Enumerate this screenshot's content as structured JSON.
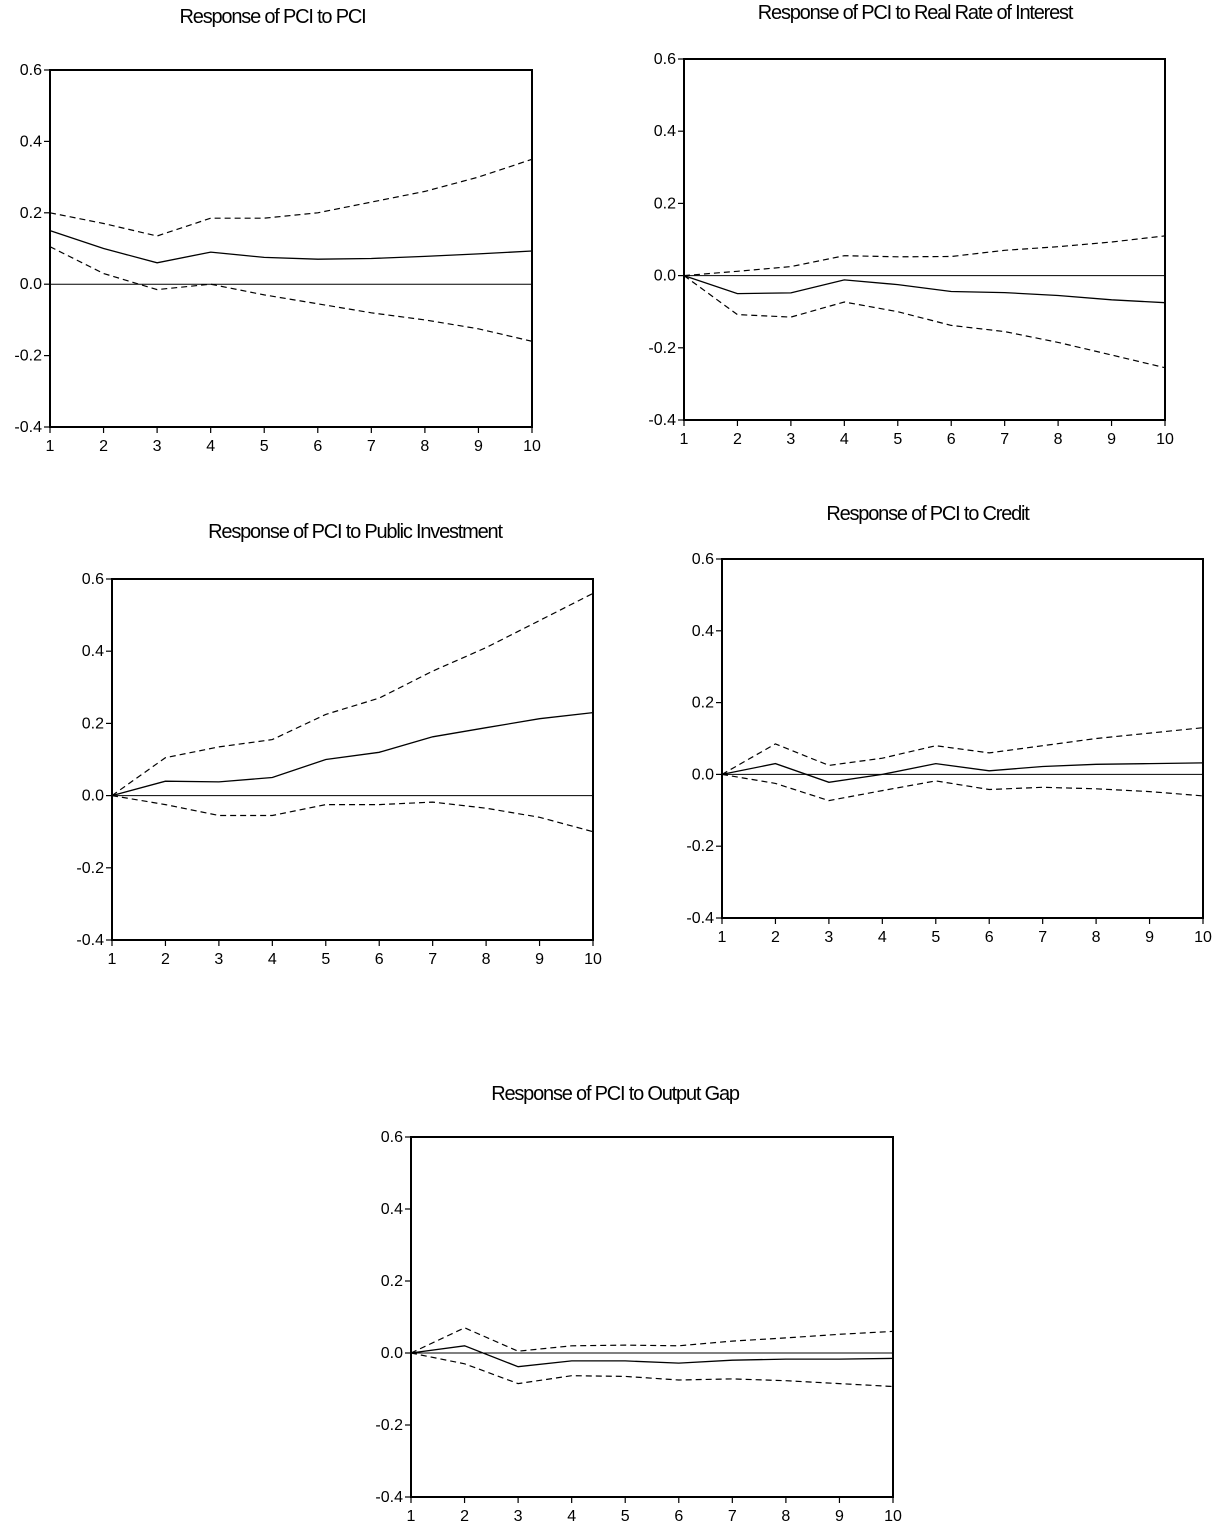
{
  "chart_data": [
    {
      "type": "line",
      "title": "Response of PCI to PCI",
      "xlabel": "",
      "ylabel": "",
      "x": [
        1,
        2,
        3,
        4,
        5,
        6,
        7,
        8,
        9,
        10
      ],
      "ylim": [
        -0.4,
        0.6
      ],
      "yticks": [
        "-0.4",
        "-0.2",
        "0.0",
        "0.2",
        "0.4",
        "0.6"
      ],
      "grid": false,
      "series": [
        {
          "role": "response",
          "style": "solid",
          "values": [
            0.15,
            0.1,
            0.06,
            0.09,
            0.075,
            0.07,
            0.072,
            0.078,
            0.085,
            0.093
          ]
        },
        {
          "role": "upper",
          "style": "dashed",
          "values": [
            0.2,
            0.17,
            0.135,
            0.185,
            0.185,
            0.2,
            0.23,
            0.26,
            0.3,
            0.35
          ]
        },
        {
          "role": "lower",
          "style": "dashed",
          "values": [
            0.105,
            0.03,
            -0.015,
            0.0,
            -0.03,
            -0.055,
            -0.08,
            -0.1,
            -0.125,
            -0.16
          ]
        }
      ]
    },
    {
      "type": "line",
      "title": "Response of PCI to Real Rate of Interest",
      "xlabel": "",
      "ylabel": "",
      "x": [
        1,
        2,
        3,
        4,
        5,
        6,
        7,
        8,
        9,
        10
      ],
      "ylim": [
        -0.4,
        0.6
      ],
      "yticks": [
        "-0.4",
        "-0.2",
        "0.0",
        "0.2",
        "0.4",
        "0.6"
      ],
      "grid": false,
      "series": [
        {
          "role": "response",
          "style": "solid",
          "values": [
            0.0,
            -0.05,
            -0.048,
            -0.012,
            -0.025,
            -0.044,
            -0.047,
            -0.055,
            -0.067,
            -0.075
          ]
        },
        {
          "role": "upper",
          "style": "dashed",
          "values": [
            0.0,
            0.012,
            0.025,
            0.055,
            0.052,
            0.053,
            0.07,
            0.08,
            0.093,
            0.11
          ]
        },
        {
          "role": "lower",
          "style": "dashed",
          "values": [
            0.0,
            -0.108,
            -0.115,
            -0.073,
            -0.1,
            -0.138,
            -0.155,
            -0.185,
            -0.22,
            -0.255
          ]
        }
      ]
    },
    {
      "type": "line",
      "title": "Response of PCI to Public Investment",
      "xlabel": "",
      "ylabel": "",
      "x": [
        1,
        2,
        3,
        4,
        5,
        6,
        7,
        8,
        9,
        10
      ],
      "ylim": [
        -0.4,
        0.6
      ],
      "yticks": [
        "-0.4",
        "-0.2",
        "0.0",
        "0.2",
        "0.4",
        "0.6"
      ],
      "grid": false,
      "series": [
        {
          "role": "response",
          "style": "solid",
          "values": [
            0.0,
            0.04,
            0.038,
            0.05,
            0.1,
            0.12,
            0.163,
            0.188,
            0.213,
            0.23
          ]
        },
        {
          "role": "upper",
          "style": "dashed",
          "values": [
            0.0,
            0.105,
            0.135,
            0.155,
            0.225,
            0.27,
            0.345,
            0.41,
            0.485,
            0.56
          ]
        },
        {
          "role": "lower",
          "style": "dashed",
          "values": [
            0.0,
            -0.025,
            -0.055,
            -0.055,
            -0.025,
            -0.025,
            -0.018,
            -0.035,
            -0.06,
            -0.1
          ]
        }
      ]
    },
    {
      "type": "line",
      "title": "Response of PCI to Credit",
      "xlabel": "",
      "ylabel": "",
      "x": [
        1,
        2,
        3,
        4,
        5,
        6,
        7,
        8,
        9,
        10
      ],
      "ylim": [
        -0.4,
        0.6
      ],
      "yticks": [
        "-0.4",
        "-0.2",
        "0.0",
        "0.2",
        "0.4",
        "0.6"
      ],
      "grid": false,
      "series": [
        {
          "role": "response",
          "style": "solid",
          "values": [
            0.0,
            0.03,
            -0.022,
            0.0,
            0.03,
            0.01,
            0.022,
            0.028,
            0.03,
            0.032
          ]
        },
        {
          "role": "upper",
          "style": "dashed",
          "values": [
            0.0,
            0.085,
            0.025,
            0.045,
            0.08,
            0.06,
            0.08,
            0.1,
            0.115,
            0.13
          ]
        },
        {
          "role": "lower",
          "style": "dashed",
          "values": [
            0.0,
            -0.025,
            -0.073,
            -0.045,
            -0.018,
            -0.042,
            -0.036,
            -0.04,
            -0.048,
            -0.06
          ]
        }
      ]
    },
    {
      "type": "line",
      "title": "Response of PCI to Output Gap",
      "xlabel": "",
      "ylabel": "",
      "x": [
        1,
        2,
        3,
        4,
        5,
        6,
        7,
        8,
        9,
        10
      ],
      "ylim": [
        -0.4,
        0.6
      ],
      "yticks": [
        "-0.4",
        "-0.2",
        "0.0",
        "0.2",
        "0.4",
        "0.6"
      ],
      "grid": false,
      "series": [
        {
          "role": "response",
          "style": "solid",
          "values": [
            0.0,
            0.02,
            -0.038,
            -0.022,
            -0.022,
            -0.028,
            -0.02,
            -0.017,
            -0.017,
            -0.015
          ]
        },
        {
          "role": "upper",
          "style": "dashed",
          "values": [
            0.0,
            0.07,
            0.005,
            0.02,
            0.022,
            0.02,
            0.033,
            0.042,
            0.052,
            0.06
          ]
        },
        {
          "role": "lower",
          "style": "dashed",
          "values": [
            0.0,
            -0.03,
            -0.085,
            -0.063,
            -0.065,
            -0.075,
            -0.072,
            -0.077,
            -0.085,
            -0.093
          ]
        }
      ]
    }
  ]
}
